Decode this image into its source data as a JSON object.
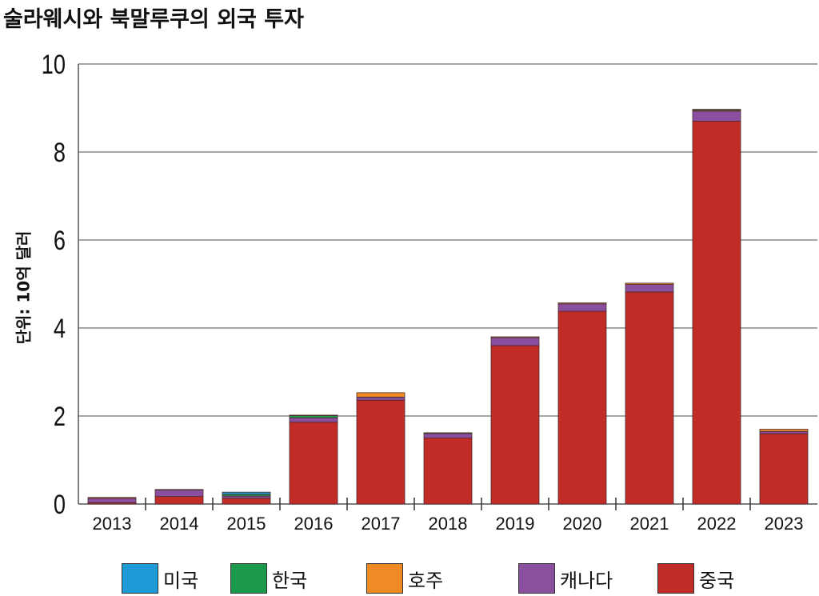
{
  "chart_data": {
    "type": "bar",
    "stacked": true,
    "title": "술라웨시와 북말루쿠의 외국 투자",
    "ylabel": "단위: 10억 달러",
    "xlabel": "",
    "ylim": [
      0,
      10
    ],
    "yticks": [
      "0",
      "2",
      "4",
      "6",
      "8",
      "10"
    ],
    "grid": true,
    "legend_position": "bottom",
    "categories": [
      "2013",
      "2014",
      "2015",
      "2016",
      "2017",
      "2018",
      "2019",
      "2020",
      "2021",
      "2022",
      "2023"
    ],
    "series": [
      {
        "name": "중국",
        "color": "#c12c27",
        "values": [
          0.03,
          0.17,
          0.13,
          1.86,
          2.36,
          1.5,
          3.6,
          4.38,
          4.82,
          8.7,
          1.6
        ]
      },
      {
        "name": "캐나다",
        "color": "#8a4f9e",
        "values": [
          0.1,
          0.15,
          0.05,
          0.1,
          0.07,
          0.1,
          0.18,
          0.17,
          0.17,
          0.23,
          0.05
        ]
      },
      {
        "name": "호주",
        "color": "#f08a24",
        "values": [
          0.02,
          0.01,
          0.0,
          0.0,
          0.1,
          0.0,
          0.02,
          0.02,
          0.03,
          0.02,
          0.05
        ]
      },
      {
        "name": "한국",
        "color": "#1a9a4a",
        "values": [
          0.0,
          0.0,
          0.04,
          0.05,
          0.0,
          0.02,
          0.0,
          0.0,
          0.0,
          0.02,
          0.0
        ]
      },
      {
        "name": "미국",
        "color": "#1e9ad6",
        "values": [
          0.0,
          0.0,
          0.05,
          0.01,
          0.0,
          0.0,
          0.0,
          0.0,
          0.0,
          0.0,
          0.0
        ]
      }
    ],
    "legend_order": [
      "미국",
      "한국",
      "호주",
      "캐나다",
      "중국"
    ]
  }
}
